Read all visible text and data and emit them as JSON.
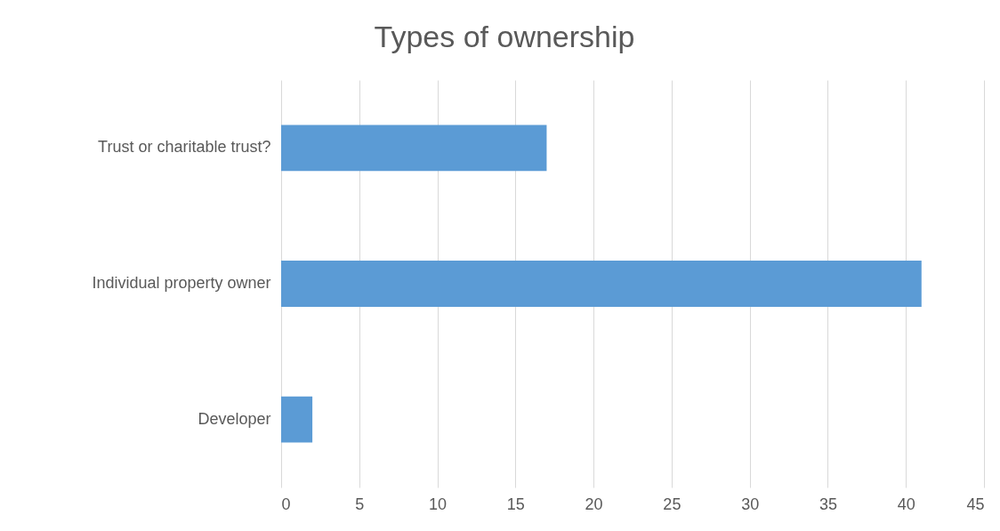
{
  "chart_data": {
    "type": "bar",
    "orientation": "horizontal",
    "title": "Types of ownership",
    "categories": [
      "Trust or charitable trust?",
      "Individual property owner",
      "Developer"
    ],
    "values": [
      17,
      41,
      2
    ],
    "color": "#5b9bd5",
    "xlim": [
      0,
      45
    ],
    "xticks": [
      0,
      5,
      10,
      15,
      20,
      25,
      30,
      35,
      40,
      45
    ],
    "grid": true
  }
}
